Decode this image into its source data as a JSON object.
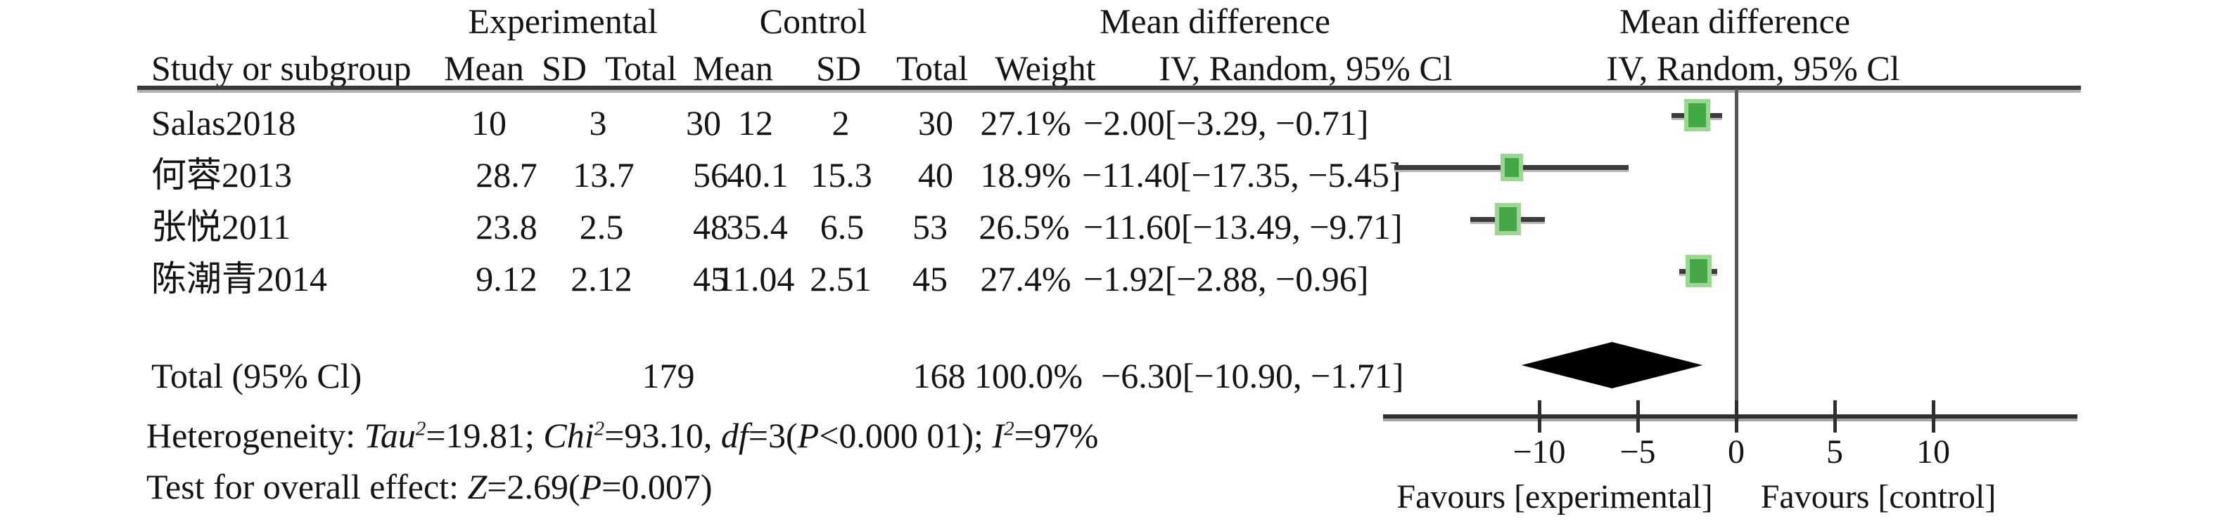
{
  "header": {
    "group_experimental": "Experimental",
    "group_control": "Control",
    "effect_title_left": "Mean difference",
    "effect_title_right": "Mean difference",
    "col_study": "Study or subgroup",
    "col_mean_e": "Mean",
    "col_sd_e": "SD",
    "col_total_e": "Total",
    "col_mean_c": "Mean",
    "col_sd_c": "SD",
    "col_total_c": "Total",
    "col_weight": "Weight",
    "col_ci_left": "IV, Random, 95% Cl",
    "col_ci_right": "IV, Random, 95% Cl"
  },
  "rows": [
    {
      "study": "Salas2018",
      "mean_e": "10",
      "sd_e": "3",
      "total_e": "30",
      "mean_c": "12",
      "sd_c": "2",
      "total_c": "30",
      "weight": "27.1%",
      "ci": "−2.00[−3.29, −0.71]"
    },
    {
      "study": "何蓉2013",
      "mean_e": "28.7",
      "sd_e": "13.7",
      "total_e": "56",
      "mean_c": "40.1",
      "sd_c": "15.3",
      "total_c": "40",
      "weight": "18.9%",
      "ci": "−11.40[−17.35, −5.45]"
    },
    {
      "study": "张悦2011",
      "mean_e": "23.8",
      "sd_e": "2.5",
      "total_e": "48",
      "mean_c": "35.4",
      "sd_c": "6.5",
      "total_c": "53",
      "weight": "26.5%",
      "ci": "−11.60[−13.49, −9.71]"
    },
    {
      "study": "陈潮青2014",
      "mean_e": "9.12",
      "sd_e": "2.12",
      "total_e": "45",
      "mean_c": "11.04",
      "sd_c": "2.51",
      "total_c": "45",
      "weight": "27.4%",
      "ci": "−1.92[−2.88, −0.96]"
    }
  ],
  "total_row": {
    "label": "Total (95% Cl)",
    "total_e": "179",
    "total_c": "168",
    "weight": "100.0%",
    "ci": "−6.30[−10.90, −1.71]"
  },
  "heterogeneity": {
    "prefix": "Heterogeneity: ",
    "tau": "Tau",
    "tau_sup": "2",
    "s1": "=19.81; ",
    "chi": "Chi",
    "chi_sup": "2",
    "s2": "=93.10, ",
    "df": "df",
    "s3": "=3(",
    "p": "P",
    "s4": "<0.000 01); ",
    "i2": "I",
    "i2_sup": "2",
    "s5": "=97%"
  },
  "overall_effect": {
    "prefix": "Test for overall effect: ",
    "z": "Z",
    "s1": "=2.69(",
    "p": "P",
    "s2": "=0.007)"
  },
  "chart_data": {
    "type": "forest",
    "effect_measure": "Mean difference, IV, Random, 95% Cl",
    "studies": [
      {
        "name": "Salas2018",
        "md": -2.0,
        "ci": [
          -3.29,
          -0.71
        ],
        "weight": 27.1
      },
      {
        "name": "何蓉2013",
        "md": -11.4,
        "ci": [
          -17.35,
          -5.45
        ],
        "weight": 18.9
      },
      {
        "name": "张悦2011",
        "md": -11.6,
        "ci": [
          -13.49,
          -9.71
        ],
        "weight": 26.5
      },
      {
        "name": "陈潮青2014",
        "md": -1.92,
        "ci": [
          -2.88,
          -0.96
        ],
        "weight": 27.4
      }
    ],
    "total": {
      "md": -6.3,
      "ci": [
        -10.9,
        -1.71
      ],
      "weight": 100.0
    },
    "x_ticks": [
      -10,
      -5,
      0,
      5,
      10
    ],
    "xlim": [
      -17.9,
      17.3
    ],
    "favours_left": "Favours [experimental]",
    "favours_right": "Favours [control]",
    "marker_color": "#44a944",
    "marker_halo_color": "#9cd694",
    "diamond_color": "#000000",
    "heterogeneity": {
      "tau2": 19.81,
      "chi2": 93.1,
      "df": 3,
      "p": "<0.000 01",
      "i2": "97%"
    },
    "overall": {
      "z": 2.69,
      "p": 0.007
    }
  }
}
